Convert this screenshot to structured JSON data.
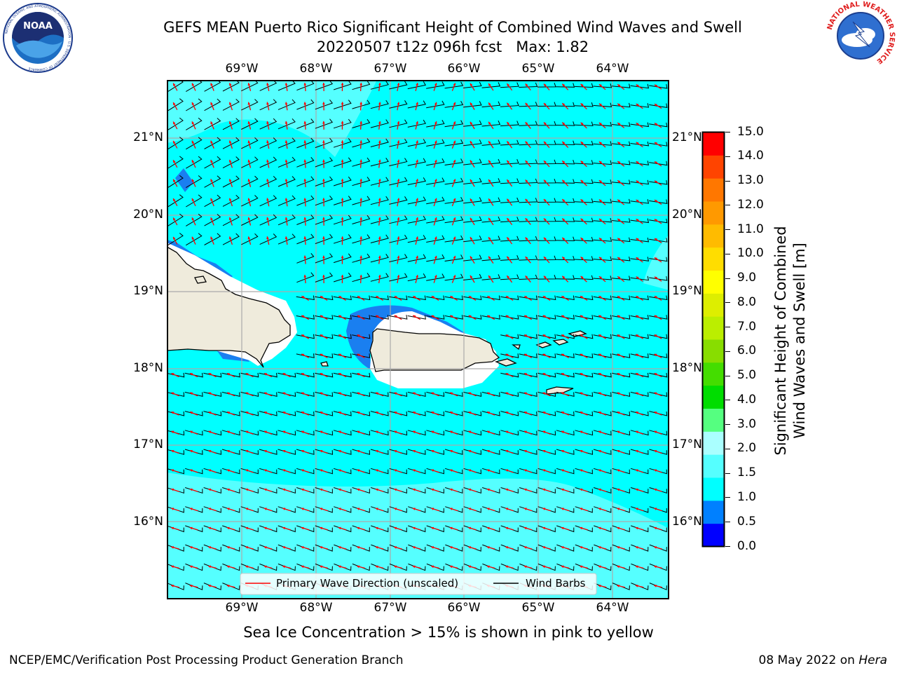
{
  "title": {
    "line1": "GEFS MEAN Puerto Rico Significant Height of Combined Wind Waves and Swell",
    "line2": "20220507 t12z 096h fcst   Max: 1.82"
  },
  "logos": {
    "left": "NOAA",
    "left_ring": "NATIONAL OCEANIC AND ATMOSPHERIC ADMINISTRATION · U.S. DEPARTMENT OF COMMERCE",
    "right_ring": "NATIONAL WEATHER SERVICE"
  },
  "map": {
    "lon_labels": [
      "69°W",
      "68°W",
      "67°W",
      "66°W",
      "65°W",
      "64°W"
    ],
    "lat_labels": [
      "21°N",
      "20°N",
      "19°N",
      "18°N",
      "17°N",
      "16°N"
    ],
    "legend": {
      "wave_label": "Primary Wave Direction (unscaled)",
      "wind_label": "Wind Barbs",
      "wave_color": "#ff0000",
      "wind_color": "#000000"
    },
    "sea_color": "#00ffff",
    "land_color": "#efebdc"
  },
  "colorbar": {
    "label": [
      "Significant Height of Combined",
      "Wind Waves and Swell [m]"
    ],
    "ticks": [
      "15.0",
      "14.0",
      "13.0",
      "12.0",
      "11.0",
      "10.0",
      "9.0",
      "8.0",
      "7.0",
      "6.0",
      "5.0",
      "4.0",
      "3.0",
      "2.0",
      "1.5",
      "1.0",
      "0.5",
      "0.0"
    ],
    "colors": [
      "#0000ff",
      "#0080ff",
      "#00ffff",
      "#55ffff",
      "#aaffff",
      "#55ff80",
      "#00dd00",
      "#44dd00",
      "#88dd00",
      "#bbee00",
      "#ddee00",
      "#ffff00",
      "#ffdd00",
      "#ffbb00",
      "#ff9900",
      "#ff7700",
      "#ff4400",
      "#ff0000"
    ]
  },
  "notes": {
    "sea_ice": "Sea Ice Concentration > 15% is shown in pink to yellow"
  },
  "footer": {
    "left": "NCEP/EMC/Verification Post Processing Product Generation Branch",
    "date": "08 May 2022 on",
    "machine": "Hera"
  }
}
